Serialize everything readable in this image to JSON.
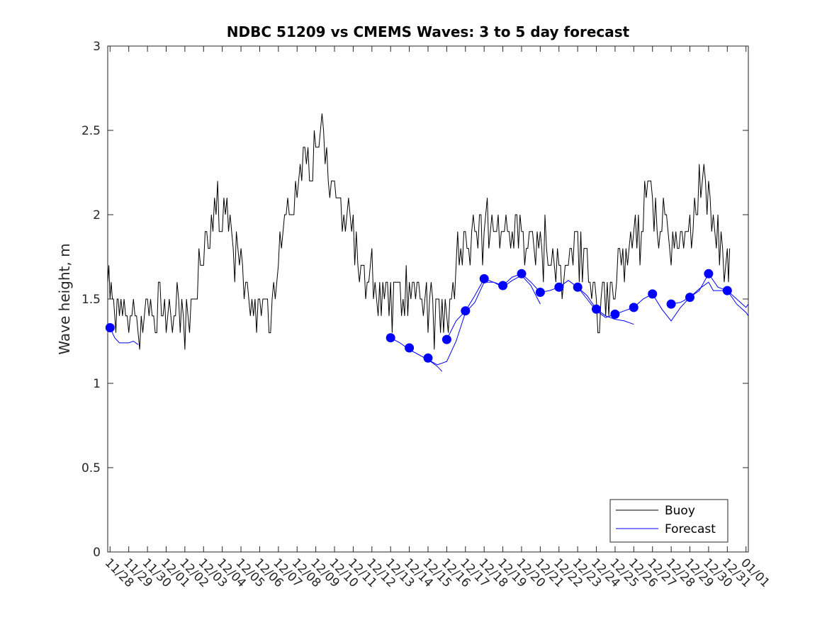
{
  "chart_data": {
    "type": "line",
    "title": "NDBC 51209 vs CMEMS Waves: 3 to 5 day forecast",
    "xlabel": "",
    "ylabel": "Wave height, m",
    "ylim": [
      0,
      3
    ],
    "yticks": [
      0,
      0.5,
      1,
      1.5,
      2,
      2.5,
      3
    ],
    "ytick_labels": [
      "0",
      "0.5",
      "1",
      "1.5",
      "2",
      "2.5",
      "3"
    ],
    "xlim": [
      "11/27 21:00",
      "01/01 03:00"
    ],
    "xtick_labels": [
      "11/28",
      "11/29",
      "11/30",
      "12/01",
      "12/02",
      "12/03",
      "12/04",
      "12/05",
      "12/06",
      "12/07",
      "12/08",
      "12/09",
      "12/10",
      "12/11",
      "12/12",
      "12/13",
      "12/14",
      "12/15",
      "12/16",
      "12/17",
      "12/18",
      "12/19",
      "12/20",
      "12/21",
      "12/22",
      "12/23",
      "12/24",
      "12/25",
      "12/26",
      "12/27",
      "12/28",
      "12/29",
      "12/30",
      "12/31",
      "01/01"
    ],
    "legend_position": "bottom-right",
    "grid": false,
    "colors": {
      "buoy": "#000000",
      "forecast": "#0000ff"
    },
    "series": [
      {
        "name": "Buoy",
        "points": [
          [
            "11/27 21:00",
            1.6
          ],
          [
            "11/28 00:00",
            1.6
          ],
          [
            "11/28 03:00",
            1.5
          ],
          [
            "11/28 06:00",
            1.5
          ],
          [
            "11/28 09:00",
            1.4
          ],
          [
            "11/28 12:00",
            1.4
          ],
          [
            "11/28 18:00",
            1.4
          ],
          [
            "11/29 00:00",
            1.35
          ],
          [
            "11/29 06:00",
            1.35
          ],
          [
            "11/29 12:00",
            1.35
          ],
          [
            "11/29 18:00",
            1.35
          ],
          [
            "11/30 00:00",
            1.4
          ],
          [
            "11/30 06:00",
            1.4
          ],
          [
            "11/30 12:00",
            1.45
          ],
          [
            "11/30 18:00",
            1.5
          ],
          [
            "12/01 00:00",
            1.4
          ],
          [
            "12/01 06:00",
            1.35
          ],
          [
            "12/01 12:00",
            1.35
          ],
          [
            "12/01 18:00",
            1.35
          ],
          [
            "12/02 00:00",
            1.4
          ],
          [
            "12/02 06:00",
            1.4
          ],
          [
            "12/02 12:00",
            1.5
          ],
          [
            "12/02 18:00",
            1.7
          ],
          [
            "12/03 00:00",
            1.8
          ],
          [
            "12/03 06:00",
            1.9
          ],
          [
            "12/03 12:00",
            1.95
          ],
          [
            "12/03 18:00",
            2.0
          ],
          [
            "12/04 00:00",
            2.05
          ],
          [
            "12/04 06:00",
            2.0
          ],
          [
            "12/04 12:00",
            1.9
          ],
          [
            "12/04 18:00",
            1.8
          ],
          [
            "12/05 00:00",
            1.7
          ],
          [
            "12/05 06:00",
            1.6
          ],
          [
            "12/05 12:00",
            1.5
          ],
          [
            "12/05 18:00",
            1.45
          ],
          [
            "12/06 00:00",
            1.4
          ],
          [
            "12/06 06:00",
            1.35
          ],
          [
            "12/06 12:00",
            1.4
          ],
          [
            "12/06 18:00",
            1.5
          ],
          [
            "12/07 00:00",
            1.7
          ],
          [
            "12/07 06:00",
            1.9
          ],
          [
            "12/07 12:00",
            2.0
          ],
          [
            "12/07 18:00",
            2.1
          ],
          [
            "12/08 00:00",
            2.2
          ],
          [
            "12/08 06:00",
            2.3
          ],
          [
            "12/08 12:00",
            2.3
          ],
          [
            "12/08 18:00",
            2.3
          ],
          [
            "12/09 00:00",
            2.35
          ],
          [
            "12/09 06:00",
            2.45
          ],
          [
            "12/09 12:00",
            2.3
          ],
          [
            "12/09 18:00",
            2.2
          ],
          [
            "12/10 00:00",
            2.15
          ],
          [
            "12/10 06:00",
            2.1
          ],
          [
            "12/10 12:00",
            2.0
          ],
          [
            "12/10 18:00",
            1.95
          ],
          [
            "12/11 00:00",
            1.85
          ],
          [
            "12/11 06:00",
            1.75
          ],
          [
            "12/11 12:00",
            1.7
          ],
          [
            "12/11 18:00",
            1.6
          ],
          [
            "12/12 00:00",
            1.55
          ],
          [
            "12/12 06:00",
            1.5
          ],
          [
            "12/12 12:00",
            1.5
          ],
          [
            "12/12 18:00",
            1.5
          ],
          [
            "12/13 00:00",
            1.45
          ],
          [
            "12/13 06:00",
            1.45
          ],
          [
            "12/13 12:00",
            1.5
          ],
          [
            "12/13 18:00",
            1.5
          ],
          [
            "12/14 00:00",
            1.45
          ],
          [
            "12/14 06:00",
            1.45
          ],
          [
            "12/14 12:00",
            1.5
          ],
          [
            "12/14 18:00",
            1.5
          ],
          [
            "12/15 00:00",
            1.45
          ],
          [
            "12/15 06:00",
            1.45
          ],
          [
            "12/15 12:00",
            1.4
          ],
          [
            "12/15 18:00",
            1.4
          ],
          [
            "12/16 00:00",
            1.4
          ],
          [
            "12/16 06:00",
            1.45
          ],
          [
            "12/16 12:00",
            1.6
          ],
          [
            "12/16 18:00",
            1.75
          ],
          [
            "12/17 00:00",
            1.85
          ],
          [
            "12/17 06:00",
            1.9
          ],
          [
            "12/17 12:00",
            1.9
          ],
          [
            "12/17 18:00",
            1.85
          ],
          [
            "12/18 00:00",
            1.9
          ],
          [
            "12/18 06:00",
            1.85
          ],
          [
            "12/18 12:00",
            1.85
          ],
          [
            "12/18 18:00",
            1.9
          ],
          [
            "12/19 00:00",
            1.85
          ],
          [
            "12/19 06:00",
            1.9
          ],
          [
            "12/19 12:00",
            1.95
          ],
          [
            "12/19 18:00",
            1.9
          ],
          [
            "12/20 00:00",
            1.85
          ],
          [
            "12/20 06:00",
            1.8
          ],
          [
            "12/20 12:00",
            1.8
          ],
          [
            "12/20 18:00",
            1.75
          ],
          [
            "12/21 00:00",
            1.8
          ],
          [
            "12/21 06:00",
            1.75
          ],
          [
            "12/21 12:00",
            1.7
          ],
          [
            "12/21 18:00",
            1.75
          ],
          [
            "12/22 00:00",
            1.7
          ],
          [
            "12/22 06:00",
            1.75
          ],
          [
            "12/22 12:00",
            1.8
          ],
          [
            "12/22 18:00",
            1.75
          ],
          [
            "12/23 00:00",
            1.75
          ],
          [
            "12/23 06:00",
            1.7
          ],
          [
            "12/23 12:00",
            1.65
          ],
          [
            "12/23 18:00",
            1.5
          ],
          [
            "12/24 00:00",
            1.45
          ],
          [
            "12/24 06:00",
            1.45
          ],
          [
            "12/24 12:00",
            1.5
          ],
          [
            "12/24 18:00",
            1.55
          ],
          [
            "12/25 00:00",
            1.6
          ],
          [
            "12/25 06:00",
            1.7
          ],
          [
            "12/25 12:00",
            1.8
          ],
          [
            "12/25 18:00",
            1.8
          ],
          [
            "12/26 00:00",
            1.85
          ],
          [
            "12/26 06:00",
            1.9
          ],
          [
            "12/26 12:00",
            2.0
          ],
          [
            "12/26 18:00",
            2.15
          ],
          [
            "12/27 00:00",
            2.1
          ],
          [
            "12/27 06:00",
            1.95
          ],
          [
            "12/27 12:00",
            1.9
          ],
          [
            "12/27 18:00",
            1.85
          ],
          [
            "12/28 00:00",
            1.85
          ],
          [
            "12/28 06:00",
            1.8
          ],
          [
            "12/28 12:00",
            1.8
          ],
          [
            "12/28 18:00",
            1.85
          ],
          [
            "12/29 00:00",
            1.9
          ],
          [
            "12/29 06:00",
            2.0
          ],
          [
            "12/29 12:00",
            2.2
          ],
          [
            "12/29 18:00",
            2.25
          ],
          [
            "12/30 00:00",
            2.05
          ],
          [
            "12/30 06:00",
            1.9
          ],
          [
            "12/30 12:00",
            1.85
          ],
          [
            "12/30 18:00",
            1.8
          ],
          [
            "12/31 00:00",
            1.8
          ],
          [
            "12/31 03:00",
            1.8
          ]
        ]
      },
      {
        "name": "Forecast",
        "segments": [
          [
            [
              "11/28 00:00",
              1.33
            ],
            [
              "11/28 06:00",
              1.27
            ],
            [
              "11/28 12:00",
              1.24
            ],
            [
              "11/29 00:00",
              1.24
            ],
            [
              "11/29 06:00",
              1.25
            ],
            [
              "11/29 12:00",
              1.23
            ]
          ],
          [
            [
              "12/13 00:00",
              1.27
            ],
            [
              "12/13 12:00",
              1.24
            ],
            [
              "12/14 00:00",
              1.2
            ],
            [
              "12/14 12:00",
              1.17
            ],
            [
              "12/15 00:00",
              1.14
            ],
            [
              "12/15 06:00",
              1.12
            ],
            [
              "12/15 12:00",
              1.1
            ],
            [
              "12/15 18:00",
              1.07
            ]
          ],
          [
            [
              "12/15 00:00",
              1.14
            ],
            [
              "12/15 12:00",
              1.11
            ],
            [
              "12/16 00:00",
              1.13
            ],
            [
              "12/16 12:00",
              1.25
            ],
            [
              "12/17 00:00",
              1.42
            ],
            [
              "12/17 12:00",
              1.48
            ],
            [
              "12/18 00:00",
              1.6
            ],
            [
              "12/18 12:00",
              1.6
            ],
            [
              "12/19 00:00",
              1.57
            ],
            [
              "12/19 12:00",
              1.61
            ],
            [
              "12/20 00:00",
              1.64
            ],
            [
              "12/20 12:00",
              1.58
            ],
            [
              "12/21 00:00",
              1.47
            ]
          ],
          [
            [
              "12/16 00:00",
              1.26
            ],
            [
              "12/16 12:00",
              1.37
            ],
            [
              "12/17 00:00",
              1.43
            ],
            [
              "12/17 12:00",
              1.52
            ],
            [
              "12/18 00:00",
              1.62
            ],
            [
              "12/18 12:00",
              1.6
            ],
            [
              "12/19 00:00",
              1.58
            ],
            [
              "12/19 12:00",
              1.63
            ],
            [
              "12/20 00:00",
              1.65
            ],
            [
              "12/20 12:00",
              1.6
            ],
            [
              "12/21 00:00",
              1.54
            ],
            [
              "12/21 12:00",
              1.55
            ],
            [
              "12/22 00:00",
              1.57
            ],
            [
              "12/22 12:00",
              1.61
            ],
            [
              "12/23 00:00",
              1.57
            ],
            [
              "12/23 12:00",
              1.52
            ],
            [
              "12/24 00:00",
              1.44
            ],
            [
              "12/24 12:00",
              1.4
            ],
            [
              "12/25 00:00",
              1.38
            ],
            [
              "12/25 12:00",
              1.37
            ],
            [
              "12/26 00:00",
              1.35
            ]
          ],
          [
            [
              "12/23 00:00",
              1.57
            ],
            [
              "12/23 12:00",
              1.5
            ],
            [
              "12/24 00:00",
              1.43
            ],
            [
              "12/24 12:00",
              1.39
            ],
            [
              "12/25 00:00",
              1.41
            ],
            [
              "12/25 12:00",
              1.43
            ],
            [
              "12/26 00:00",
              1.45
            ],
            [
              "12/26 12:00",
              1.5
            ],
            [
              "12/27 00:00",
              1.53
            ],
            [
              "12/27 12:00",
              1.44
            ],
            [
              "12/28 00:00",
              1.37
            ],
            [
              "12/28 12:00",
              1.45
            ],
            [
              "12/29 00:00",
              1.51
            ],
            [
              "12/29 12:00",
              1.55
            ],
            [
              "12/30 00:00",
              1.65
            ],
            [
              "12/30 12:00",
              1.57
            ],
            [
              "12/31 00:00",
              1.55
            ],
            [
              "12/31 12:00",
              1.5
            ],
            [
              "01/01 00:00",
              1.45
            ],
            [
              "01/01 03:00",
              1.47
            ]
          ],
          [
            [
              "12/28 00:00",
              1.47
            ],
            [
              "12/28 12:00",
              1.48
            ],
            [
              "12/29 00:00",
              1.51
            ],
            [
              "12/29 12:00",
              1.56
            ],
            [
              "12/30 00:00",
              1.6
            ],
            [
              "12/30 06:00",
              1.55
            ],
            [
              "12/31 00:00",
              1.55
            ],
            [
              "12/31 12:00",
              1.47
            ],
            [
              "01/01 00:00",
              1.42
            ],
            [
              "01/01 03:00",
              1.4
            ]
          ]
        ],
        "markers": [
          [
            "11/28 00:00",
            1.33
          ],
          [
            "12/13 00:00",
            1.27
          ],
          [
            "12/14 00:00",
            1.21
          ],
          [
            "12/15 00:00",
            1.15
          ],
          [
            "12/16 00:00",
            1.26
          ],
          [
            "12/17 00:00",
            1.43
          ],
          [
            "12/18 00:00",
            1.62
          ],
          [
            "12/19 00:00",
            1.58
          ],
          [
            "12/20 00:00",
            1.65
          ],
          [
            "12/21 00:00",
            1.54
          ],
          [
            "12/22 00:00",
            1.57
          ],
          [
            "12/23 00:00",
            1.57
          ],
          [
            "12/24 00:00",
            1.44
          ],
          [
            "12/25 00:00",
            1.41
          ],
          [
            "12/26 00:00",
            1.45
          ],
          [
            "12/27 00:00",
            1.53
          ],
          [
            "12/28 00:00",
            1.47
          ],
          [
            "12/29 00:00",
            1.51
          ],
          [
            "12/30 00:00",
            1.65
          ],
          [
            "12/31 00:00",
            1.55
          ]
        ]
      }
    ]
  }
}
